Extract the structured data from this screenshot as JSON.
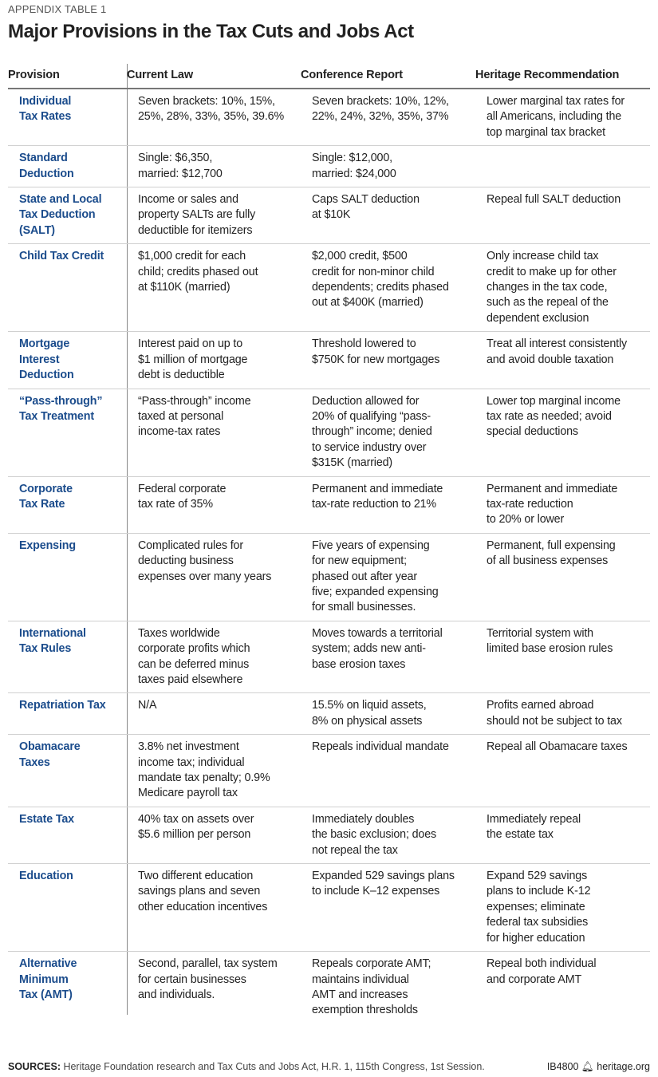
{
  "eyebrow": "APPENDIX TABLE 1",
  "title": "Major Provisions in the Tax Cuts and Jobs Act",
  "accent_color": "#1b4c8c",
  "columns": [
    "Provision",
    "Current Law",
    "Conference Report",
    "Heritage Recommendation"
  ],
  "rows": [
    [
      "Individual\nTax Rates",
      "Seven brackets: 10%, 15%,\n25%, 28%, 33%, 35%, 39.6%",
      "Seven brackets: 10%, 12%,\n22%, 24%, 32%, 35%, 37%",
      "Lower marginal tax rates for\nall Americans, including the\ntop marginal tax bracket"
    ],
    [
      "Standard\nDeduction",
      "Single: $6,350,\nmarried: $12,700",
      "Single: $12,000,\nmarried: $24,000",
      ""
    ],
    [
      "State and Local\nTax Deduction\n(SALT)",
      "Income or sales and\nproperty SALTs are fully\ndeductible for itemizers",
      "Caps SALT deduction\nat $10K",
      "Repeal full SALT deduction"
    ],
    [
      "Child Tax Credit",
      "$1,000 credit for each\nchild; credits phased out\nat $110K (married)",
      "$2,000 credit, $500\ncredit for non-minor child\ndependents; credits phased\nout at $400K (married)",
      "Only increase child tax\ncredit to make up for other\nchanges in the tax code,\nsuch as the repeal of the\ndependent exclusion"
    ],
    [
      "Mortgage\nInterest\nDeduction",
      "Interest paid on up to\n$1 million of mortgage\ndebt is deductible",
      "Threshold lowered to\n$750K for new mortgages",
      "Treat all interest consistently\nand avoid double taxation"
    ],
    [
      "“Pass-through”\nTax Treatment",
      "“Pass-through” income\ntaxed at personal\nincome-tax rates",
      "Deduction allowed for\n20% of qualifying “pass-\nthrough” income; denied\nto service industry over\n$315K (married)",
      "Lower top marginal income\ntax rate as needed; avoid\nspecial deductions"
    ],
    [
      "Corporate\nTax Rate",
      "Federal corporate\ntax rate of 35%",
      "Permanent and immediate\ntax-rate reduction to 21%",
      "Permanent and immediate\ntax-rate reduction\nto 20% or lower"
    ],
    [
      "Expensing",
      "Complicated rules for\ndeducting business\nexpenses over many years",
      "Five years of expensing\nfor new equipment;\nphased out after year\nfive; expanded expensing\nfor small businesses.",
      "Permanent, full expensing\nof all business expenses"
    ],
    [
      "International\nTax Rules",
      "Taxes worldwide\ncorporate profits which\ncan be deferred minus\ntaxes paid elsewhere",
      "Moves towards a territorial\nsystem; adds new anti-\nbase erosion taxes",
      "Territorial system with\nlimited base erosion rules"
    ],
    [
      "Repatriation Tax",
      "N/A",
      "15.5% on liquid assets,\n8% on physical assets",
      "Profits earned abroad\nshould not be subject to tax"
    ],
    [
      "Obamacare\nTaxes",
      "3.8% net investment\nincome tax; individual\nmandate tax penalty; 0.9%\nMedicare payroll tax",
      "Repeals individual mandate",
      "Repeal all Obamacare taxes"
    ],
    [
      "Estate Tax",
      "40% tax on assets over\n$5.6 million per person",
      "Immediately doubles\nthe basic exclusion; does\nnot repeal the tax",
      "Immediately repeal\nthe estate tax"
    ],
    [
      "Education",
      "Two different education\nsavings plans and seven\nother education incentives",
      "Expanded 529 savings plans\nto include K–12 expenses",
      "Expand 529 savings\nplans to include K-12\nexpenses; eliminate\nfederal tax subsidies\nfor higher education"
    ],
    [
      "Alternative\nMinimum\nTax (AMT)",
      "Second, parallel, tax system\nfor certain businesses\nand individuals.",
      "Repeals corporate AMT;\nmaintains individual\nAMT and increases\nexemption thresholds",
      "Repeal both individual\nand corporate AMT"
    ]
  ],
  "footer": {
    "sources_label": "SOURCES:",
    "sources_text": " Heritage Foundation research and Tax Cuts and Jobs Act, H.R. 1, 115th Congress, 1st Session.",
    "ref_id": "IB4800",
    "logo_icon": "liberty-bell-icon",
    "site": "heritage.org"
  }
}
